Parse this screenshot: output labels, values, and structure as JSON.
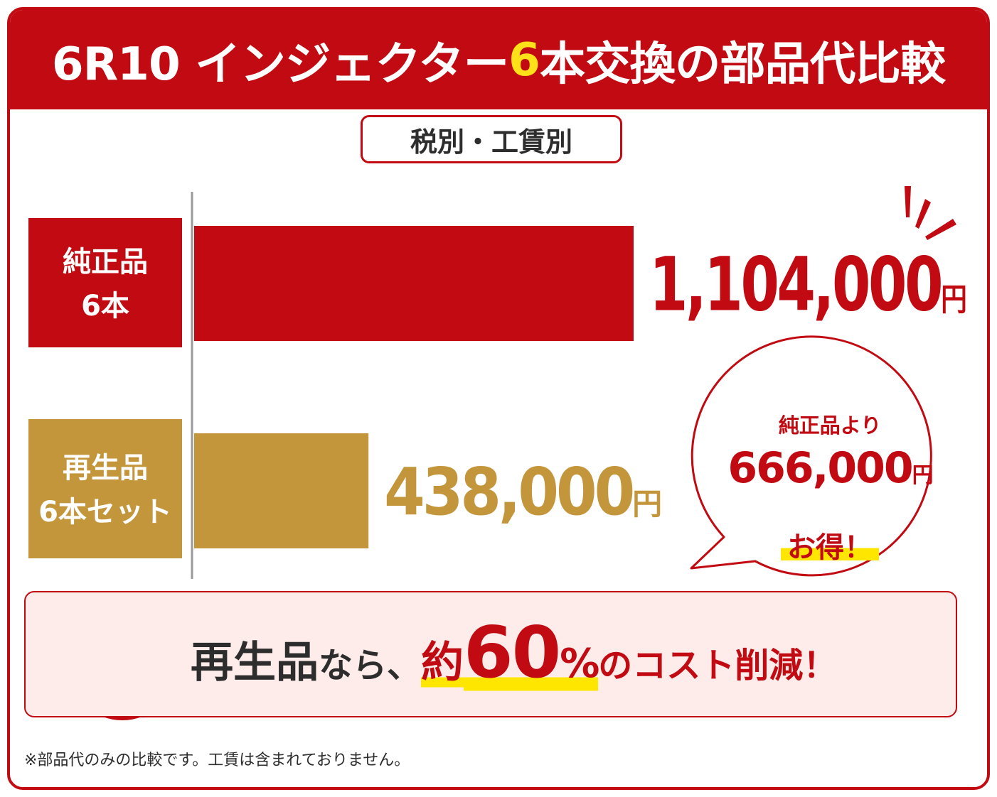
{
  "header": {
    "title_before": "6R10 インジェクター",
    "title_highlight": "6",
    "title_after": "本交換の部品代比較"
  },
  "tax_note": "税別・工賃別",
  "chart_data": {
    "type": "bar",
    "orientation": "horizontal",
    "categories": [
      "純正品 6本",
      "再生品 6本セット"
    ],
    "series": [
      {
        "values": [
          1104000,
          438000
        ]
      }
    ],
    "value_labels": [
      "1,104,000",
      "438,000"
    ],
    "unit": "円",
    "label_lines": [
      [
        "純正品",
        "6本"
      ],
      [
        "再生品",
        "6本セット"
      ]
    ],
    "colors": [
      "#c10a12",
      "#c4963c"
    ],
    "title": "",
    "xlabel": "",
    "ylabel": "",
    "grid": false,
    "legend": "none"
  },
  "bubble": {
    "top": "純正品より",
    "amount": "666,000",
    "unit": "円",
    "bottom": "お得！"
  },
  "summary": {
    "icon_symbol": "¥",
    "part1": "再生品",
    "part2": "なら、",
    "part3": "約",
    "pct": "60",
    "pct_sign": "%",
    "part4": "のコスト削減！"
  },
  "footnote": "※部品代のみの比較です。工賃は含まれておりません。",
  "colors": {
    "brand_red": "#c10a12",
    "gold": "#c4963c",
    "highlight_yellow": "#ffe600",
    "summary_bg": "#fdecea"
  }
}
